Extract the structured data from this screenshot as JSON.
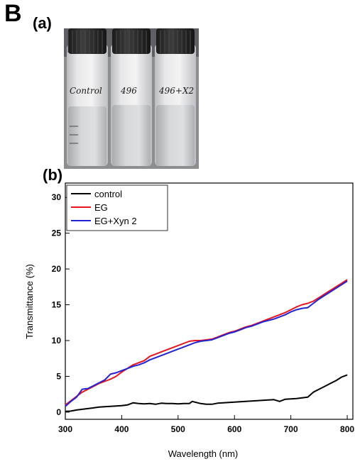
{
  "figure": {
    "panel_letter": "B",
    "photo_label": "(a)",
    "chart_label": "(b)"
  },
  "photo": {
    "vial_labels": [
      "Control",
      "496",
      "496+X2"
    ]
  },
  "chart_data": {
    "type": "line",
    "title": "",
    "xlabel": "Wavelength (nm)",
    "ylabel": "Transmittance (%)",
    "xlim": [
      300,
      810
    ],
    "ylim": [
      -1,
      32
    ],
    "xticks": [
      300,
      400,
      500,
      600,
      700,
      800
    ],
    "yticks": [
      0,
      5,
      10,
      15,
      20,
      25,
      30
    ],
    "grid": false,
    "legend_position": "top-left",
    "series": [
      {
        "name": "control",
        "color": "#000000",
        "x": [
          300,
          310,
          320,
          330,
          340,
          350,
          360,
          370,
          380,
          390,
          400,
          410,
          420,
          430,
          440,
          450,
          460,
          470,
          480,
          490,
          500,
          510,
          520,
          525,
          530,
          540,
          550,
          560,
          570,
          580,
          590,
          600,
          610,
          620,
          630,
          640,
          650,
          660,
          670,
          680,
          690,
          700,
          710,
          720,
          730,
          740,
          750,
          760,
          770,
          780,
          790,
          800
        ],
        "y": [
          0.1,
          0.15,
          0.3,
          0.4,
          0.5,
          0.6,
          0.7,
          0.75,
          0.8,
          0.85,
          0.9,
          1.0,
          1.3,
          1.2,
          1.15,
          1.2,
          1.1,
          1.25,
          1.2,
          1.2,
          1.15,
          1.2,
          1.2,
          1.5,
          1.4,
          1.2,
          1.1,
          1.1,
          1.25,
          1.3,
          1.35,
          1.4,
          1.45,
          1.5,
          1.55,
          1.6,
          1.65,
          1.7,
          1.75,
          1.5,
          1.8,
          1.85,
          1.9,
          2.0,
          2.1,
          2.8,
          3.2,
          3.6,
          4.0,
          4.4,
          4.9,
          5.2
        ]
      },
      {
        "name": "EG",
        "color": "#e8141c",
        "x": [
          300,
          310,
          320,
          330,
          340,
          350,
          360,
          370,
          380,
          390,
          400,
          410,
          420,
          430,
          440,
          450,
          460,
          470,
          480,
          490,
          500,
          510,
          520,
          530,
          540,
          550,
          560,
          570,
          580,
          590,
          600,
          610,
          620,
          630,
          640,
          650,
          660,
          670,
          680,
          690,
          700,
          710,
          720,
          730,
          740,
          750,
          760,
          770,
          780,
          790,
          800
        ],
        "y": [
          1.0,
          1.6,
          2.2,
          2.8,
          3.2,
          3.6,
          4.0,
          4.3,
          4.6,
          5.0,
          5.6,
          6.1,
          6.6,
          6.9,
          7.2,
          7.8,
          8.1,
          8.4,
          8.7,
          9.0,
          9.3,
          9.6,
          9.9,
          10.0,
          10.0,
          10.1,
          10.2,
          10.5,
          10.8,
          11.1,
          11.3,
          11.6,
          11.9,
          12.1,
          12.4,
          12.7,
          13.0,
          13.3,
          13.6,
          13.9,
          14.3,
          14.7,
          15.0,
          15.2,
          15.5,
          16.0,
          16.5,
          17.0,
          17.5,
          18.0,
          18.5
        ]
      },
      {
        "name": "EG+Xyn 2",
        "color": "#2323d6",
        "x": [
          300,
          310,
          320,
          330,
          340,
          350,
          360,
          370,
          380,
          390,
          400,
          410,
          420,
          430,
          440,
          450,
          460,
          470,
          480,
          490,
          500,
          510,
          520,
          530,
          540,
          550,
          560,
          570,
          580,
          590,
          600,
          610,
          620,
          630,
          640,
          650,
          660,
          670,
          680,
          690,
          700,
          710,
          720,
          730,
          740,
          750,
          760,
          770,
          780,
          790,
          800
        ],
        "y": [
          0.8,
          1.5,
          2.1,
          3.2,
          3.3,
          3.7,
          4.1,
          4.5,
          5.3,
          5.5,
          5.8,
          6.1,
          6.4,
          6.6,
          6.9,
          7.3,
          7.6,
          7.9,
          8.2,
          8.5,
          8.8,
          9.1,
          9.4,
          9.7,
          9.9,
          10.0,
          10.1,
          10.4,
          10.7,
          11.0,
          11.2,
          11.5,
          11.8,
          12.0,
          12.3,
          12.6,
          12.8,
          13.0,
          13.3,
          13.6,
          14.0,
          14.3,
          14.5,
          14.6,
          15.2,
          15.8,
          16.3,
          16.8,
          17.3,
          17.8,
          18.3
        ]
      }
    ]
  }
}
